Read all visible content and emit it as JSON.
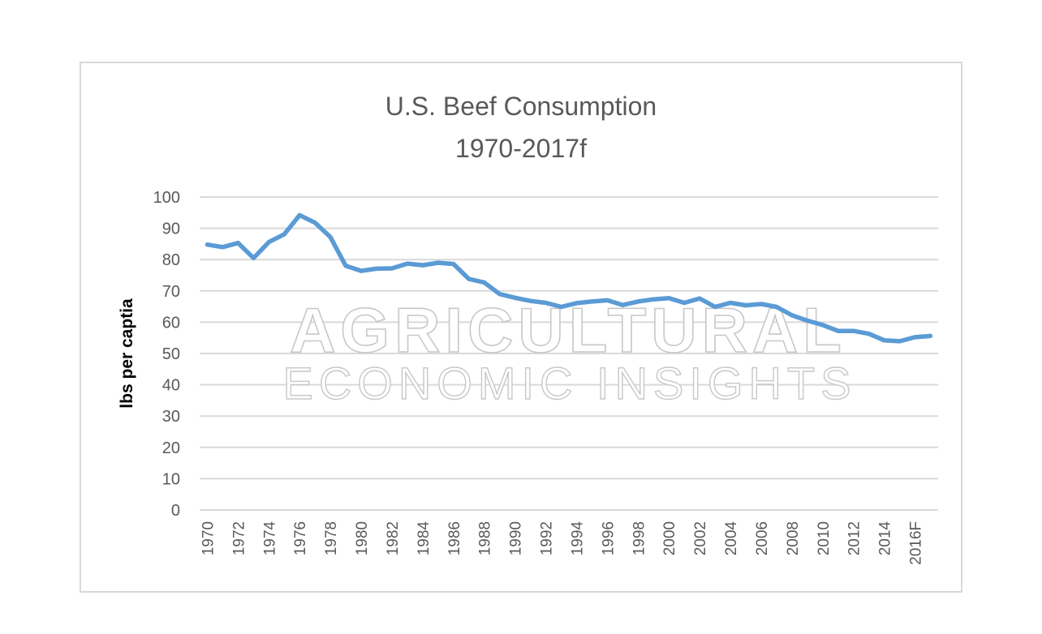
{
  "watermark": {
    "line1": "AGRICULTURAL",
    "line2": "ECONOMIC INSIGHTS"
  },
  "colors": {
    "series_line": "#5b9bd5",
    "grid": "#d9d9d9",
    "frame": "#d9d9d9",
    "text": "#595959"
  },
  "chart_data": {
    "type": "line",
    "title_lines": [
      "U.S. Beef Consumption",
      "1970-2017f"
    ],
    "xlabel": "",
    "ylabel": "lbs per captia",
    "ylim": [
      0,
      100
    ],
    "y_ticks": [
      0,
      10,
      20,
      30,
      40,
      50,
      60,
      70,
      80,
      90,
      100
    ],
    "grid": true,
    "legend": "none",
    "x_tick_labels": [
      "1970",
      "1972",
      "1974",
      "1976",
      "1978",
      "1980",
      "1982",
      "1984",
      "1986",
      "1988",
      "1990",
      "1992",
      "1994",
      "1996",
      "1998",
      "2000",
      "2002",
      "2004",
      "2006",
      "2008",
      "2010",
      "2012",
      "2014",
      "2016F"
    ],
    "categories": [
      "1970",
      "1971",
      "1972",
      "1973",
      "1974",
      "1975",
      "1976",
      "1977",
      "1978",
      "1979",
      "1980",
      "1981",
      "1982",
      "1983",
      "1984",
      "1985",
      "1986",
      "1987",
      "1988",
      "1989",
      "1990",
      "1991",
      "1992",
      "1993",
      "1994",
      "1995",
      "1996",
      "1997",
      "1998",
      "1999",
      "2000",
      "2001",
      "2002",
      "2003",
      "2004",
      "2005",
      "2006",
      "2007",
      "2008",
      "2009",
      "2010",
      "2011",
      "2012",
      "2013",
      "2014",
      "2015",
      "2016F",
      "2017F"
    ],
    "series": [
      {
        "values": [
          84.8,
          84.0,
          85.3,
          80.5,
          85.6,
          88.1,
          94.2,
          91.8,
          87.2,
          78.0,
          76.4,
          77.1,
          77.2,
          78.7,
          78.2,
          79.0,
          78.6,
          73.8,
          72.7,
          69.0,
          67.8,
          66.8,
          66.2,
          64.9,
          66.1,
          66.6,
          67.0,
          65.5,
          66.6,
          67.3,
          67.7,
          66.2,
          67.6,
          64.9,
          66.2,
          65.4,
          65.8,
          64.9,
          62.2,
          60.5,
          59.1,
          57.2,
          57.2,
          56.3,
          54.2,
          53.9,
          55.2,
          55.6
        ]
      }
    ]
  }
}
